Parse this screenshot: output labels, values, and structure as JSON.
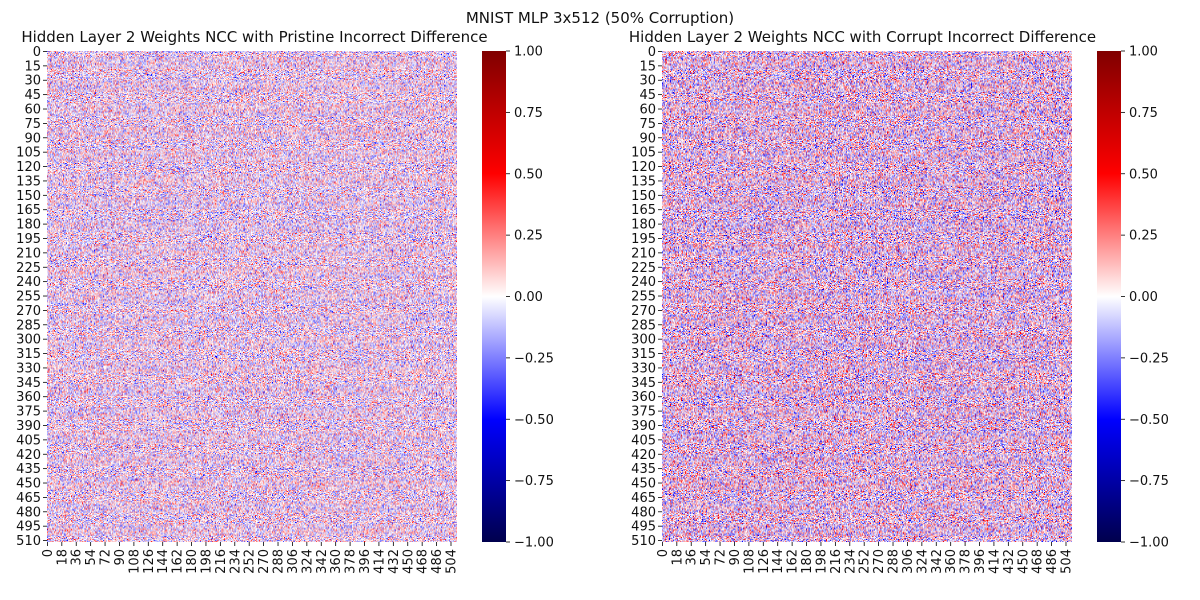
{
  "figure": {
    "title": "MNIST MLP 3x512 (50% Corruption)"
  },
  "colorbar": {
    "ticks": [
      "1.00",
      "0.75",
      "0.50",
      "0.25",
      "0.00",
      "−0.25",
      "−0.50",
      "−0.75",
      "−1.00"
    ],
    "tick_values": [
      1.0,
      0.75,
      0.5,
      0.25,
      0.0,
      -0.25,
      -0.5,
      -0.75,
      -1.0
    ],
    "colormap": "seismic",
    "colors": {
      "low": "#00004c",
      "mid_low": "#0000ff",
      "center": "#ffffff",
      "mid_high": "#ff0000",
      "high": "#7f0000"
    }
  },
  "chart_data": [
    {
      "type": "heatmap",
      "title": "Hidden Layer 2 Weights NCC with Pristine Incorrect Difference",
      "rows": 512,
      "cols": 512,
      "vmin": -1.0,
      "vmax": 1.0,
      "y_tick_labels": [
        "0",
        "15",
        "30",
        "45",
        "60",
        "75",
        "90",
        "105",
        "120",
        "135",
        "150",
        "165",
        "180",
        "195",
        "210",
        "225",
        "240",
        "255",
        "270",
        "285",
        "300",
        "315",
        "330",
        "345",
        "360",
        "375",
        "390",
        "405",
        "420",
        "435",
        "450",
        "465",
        "480",
        "495",
        "510"
      ],
      "x_tick_labels": [
        "0",
        "18",
        "36",
        "54",
        "72",
        "90",
        "108",
        "126",
        "144",
        "162",
        "180",
        "198",
        "216",
        "234",
        "252",
        "270",
        "288",
        "306",
        "324",
        "342",
        "360",
        "378",
        "396",
        "414",
        "432",
        "450",
        "468",
        "486",
        "504"
      ],
      "value_range_observed": [
        -0.5,
        0.5
      ],
      "pattern": "dense noise, mostly low magnitude (|v| < 0.3), faint horizontal banding"
    },
    {
      "type": "heatmap",
      "title": "Hidden Layer 2 Weights NCC with Corrupt Incorrect Difference",
      "rows": 512,
      "cols": 512,
      "vmin": -1.0,
      "vmax": 1.0,
      "y_tick_labels": [
        "0",
        "15",
        "30",
        "45",
        "60",
        "75",
        "90",
        "105",
        "120",
        "135",
        "150",
        "165",
        "180",
        "195",
        "210",
        "225",
        "240",
        "255",
        "270",
        "285",
        "300",
        "315",
        "330",
        "345",
        "360",
        "375",
        "390",
        "405",
        "420",
        "435",
        "450",
        "465",
        "480",
        "495",
        "510"
      ],
      "x_tick_labels": [
        "0",
        "18",
        "36",
        "54",
        "72",
        "90",
        "108",
        "126",
        "144",
        "162",
        "180",
        "198",
        "216",
        "234",
        "252",
        "270",
        "288",
        "306",
        "324",
        "342",
        "360",
        "378",
        "396",
        "414",
        "432",
        "450",
        "468",
        "486",
        "504"
      ],
      "value_range_observed": [
        -0.5,
        0.5
      ],
      "pattern": "dense noise, slightly stronger contrast than left panel"
    }
  ]
}
